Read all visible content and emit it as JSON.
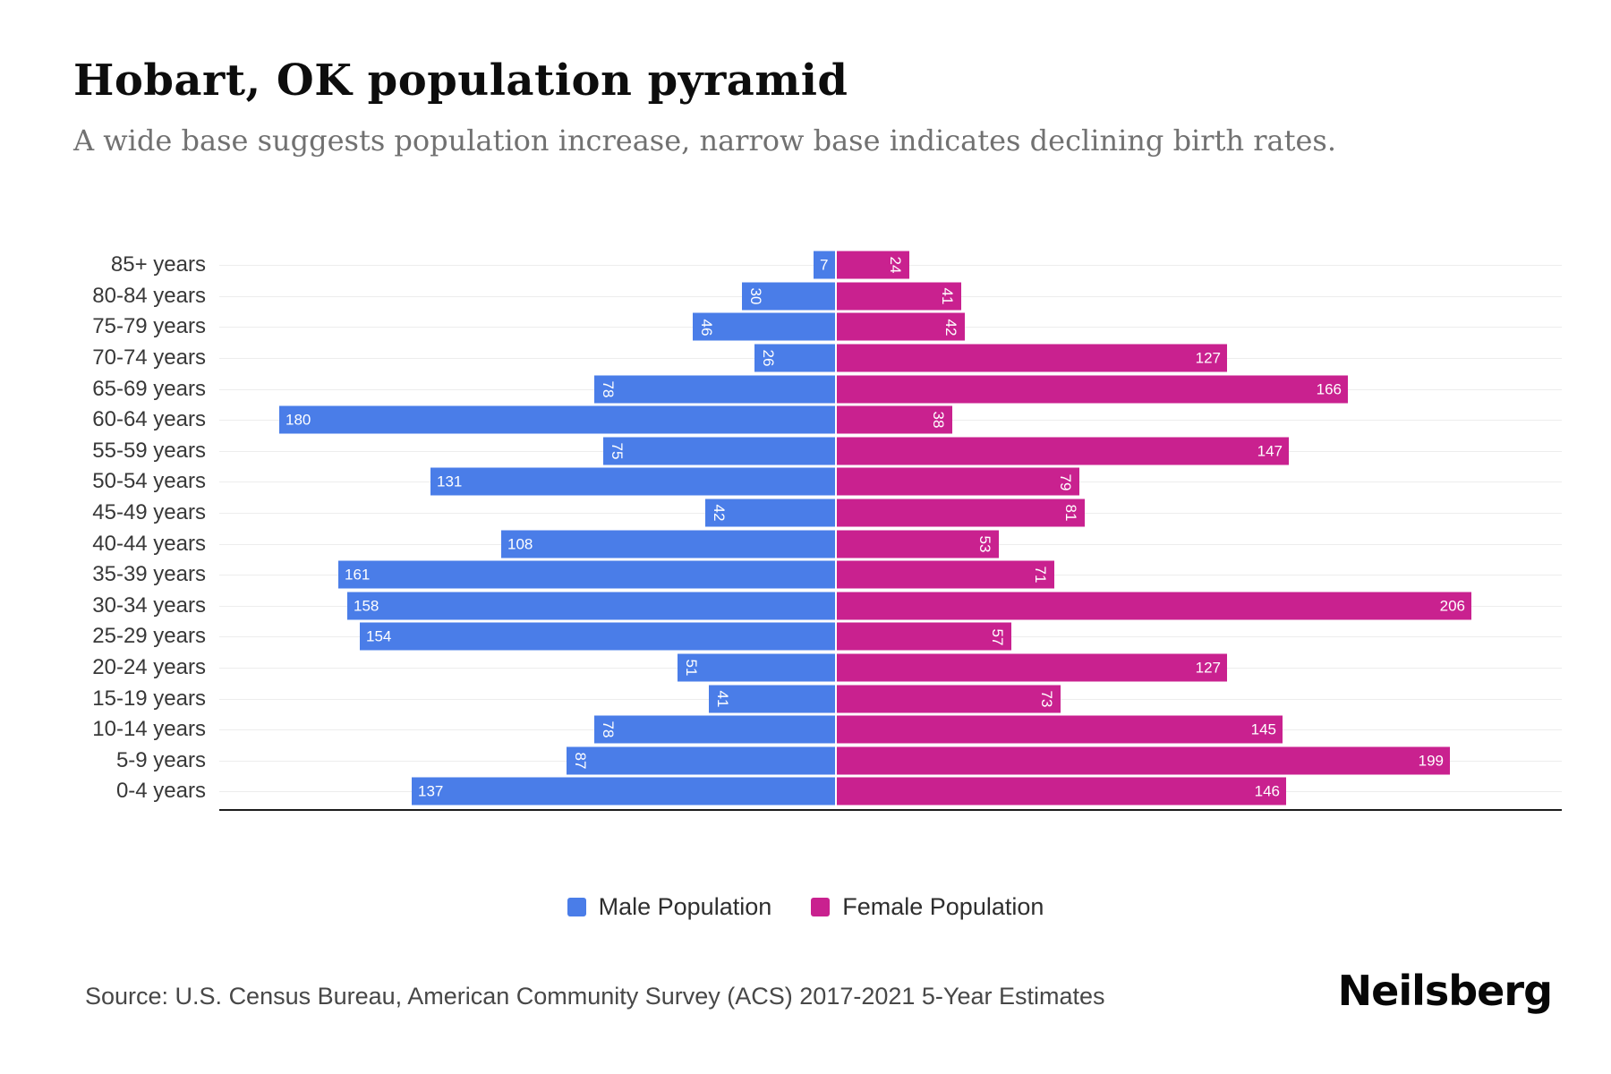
{
  "header": {
    "title": "Hobart, OK population pyramid",
    "subtitle": "A wide base suggests population increase, narrow base indicates declining birth rates."
  },
  "chart_data": {
    "type": "bar",
    "variant": "population-pyramid",
    "categories": [
      "85+ years",
      "80-84 years",
      "75-79 years",
      "70-74 years",
      "65-69 years",
      "60-64 years",
      "55-59 years",
      "50-54 years",
      "45-49 years",
      "40-44 years",
      "35-39 years",
      "30-34 years",
      "25-29 years",
      "20-24 years",
      "15-19 years",
      "10-14 years",
      "5-9 years",
      "0-4 years"
    ],
    "series": [
      {
        "name": "Male Population",
        "color": "#4A7DE8",
        "direction": "left",
        "values": [
          7,
          30,
          46,
          26,
          78,
          180,
          75,
          131,
          42,
          108,
          161,
          158,
          154,
          51,
          41,
          78,
          87,
          137
        ]
      },
      {
        "name": "Female Population",
        "color": "#C9218F",
        "direction": "right",
        "values": [
          24,
          41,
          42,
          127,
          166,
          38,
          147,
          79,
          81,
          53,
          71,
          206,
          57,
          127,
          73,
          145,
          199,
          146
        ]
      }
    ],
    "value_labels": "inside-outer-end, white, rotated vertically when value has 2 digits",
    "axes": {
      "x_ticks": "none",
      "baseline": "bottom",
      "grid": "horizontal per row"
    },
    "legend_position": "bottom-center"
  },
  "legend": {
    "items": [
      {
        "label": "Male Population",
        "color": "#4A7DE8"
      },
      {
        "label": "Female Population",
        "color": "#C9218F"
      }
    ]
  },
  "footer": {
    "source": "Source: U.S. Census Bureau, American Community Survey (ACS) 2017-2021 5-Year Estimates",
    "brand": "Neilsberg"
  }
}
